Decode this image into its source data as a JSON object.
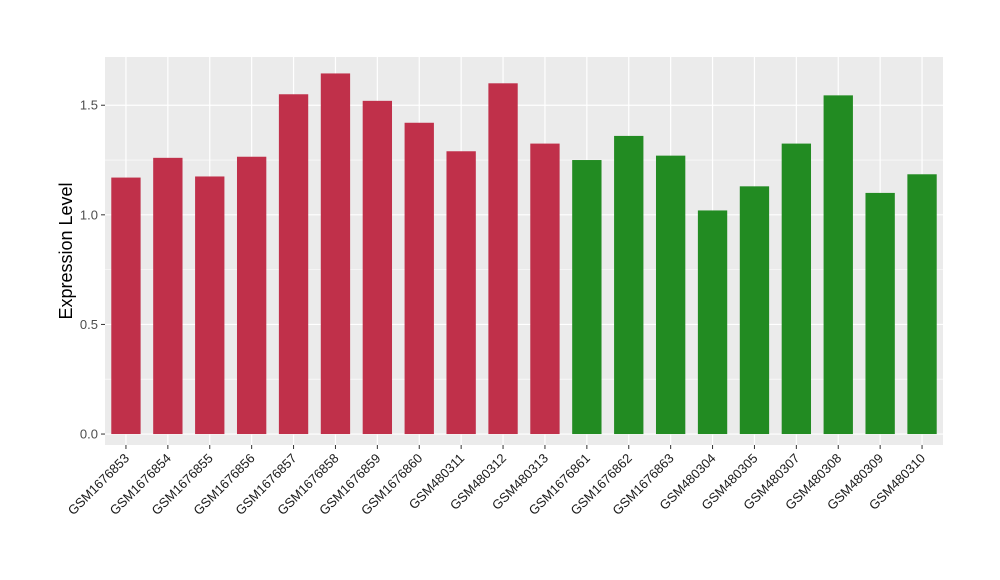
{
  "chart_data": {
    "type": "bar",
    "title": "",
    "xlabel": "",
    "ylabel": "Expression Level",
    "ylim": [
      -0.05,
      1.72
    ],
    "yticks": [
      0.0,
      0.5,
      1.0,
      1.5
    ],
    "ytick_labels": [
      "0.0",
      "0.5",
      "1.0",
      "1.5"
    ],
    "grid": true,
    "categories": [
      "GSM1676853",
      "GSM1676854",
      "GSM1676855",
      "GSM1676856",
      "GSM1676857",
      "GSM1676858",
      "GSM1676859",
      "GSM1676860",
      "GSM480311",
      "GSM480312",
      "GSM480313",
      "GSM1676861",
      "GSM1676862",
      "GSM1676863",
      "GSM480304",
      "GSM480305",
      "GSM480307",
      "GSM480308",
      "GSM480309",
      "GSM480310"
    ],
    "values": [
      1.17,
      1.26,
      1.175,
      1.265,
      1.55,
      1.645,
      1.52,
      1.42,
      1.29,
      1.6,
      1.325,
      1.25,
      1.36,
      1.27,
      1.02,
      1.13,
      1.325,
      1.545,
      1.1,
      1.185
    ],
    "colors": [
      "#c0304a",
      "#c0304a",
      "#c0304a",
      "#c0304a",
      "#c0304a",
      "#c0304a",
      "#c0304a",
      "#c0304a",
      "#c0304a",
      "#c0304a",
      "#c0304a",
      "#228b22",
      "#228b22",
      "#228b22",
      "#228b22",
      "#228b22",
      "#228b22",
      "#228b22",
      "#228b22",
      "#228b22"
    ],
    "panel_background": "#ebebeb",
    "grid_color": "#ffffff"
  }
}
